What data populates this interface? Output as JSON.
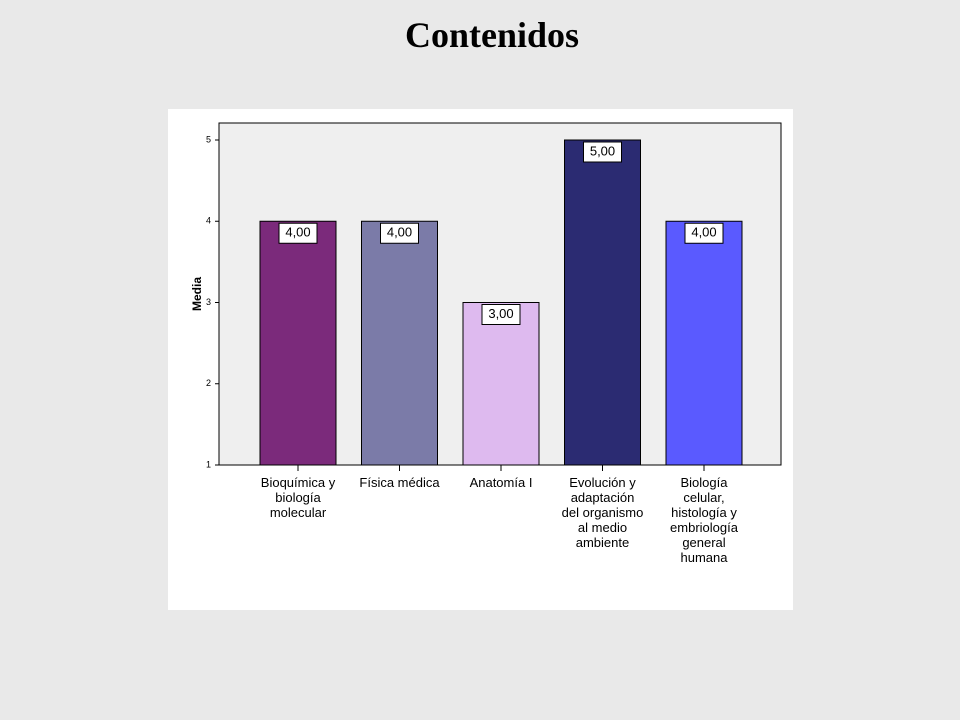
{
  "slide": {
    "title": "Contenidos"
  },
  "chart_data": {
    "type": "bar",
    "title": "",
    "xlabel": "",
    "ylabel": "Media",
    "ylim": [
      1,
      5
    ],
    "yticks": [
      "1",
      "2",
      "3",
      "4",
      "5"
    ],
    "grid": false,
    "categories": [
      [
        "Bioquímica y",
        "biología",
        "molecular"
      ],
      [
        "Física médica"
      ],
      [
        "Anatomía I"
      ],
      [
        "Evolución y",
        "adaptación",
        "del organismo",
        "al medio",
        "ambiente"
      ],
      [
        "Biología",
        "celular,",
        "histología y",
        "embriología",
        "general",
        "humana"
      ]
    ],
    "values": [
      4.0,
      4.0,
      3.0,
      5.0,
      4.0
    ],
    "value_labels": [
      "4,00",
      "4,00",
      "3,00",
      "5,00",
      "4,00"
    ],
    "colors": [
      "#7b2a7b",
      "#7b7ba8",
      "#debaef",
      "#2b2b72",
      "#5a5aff"
    ],
    "plot_background": "#efefef"
  }
}
